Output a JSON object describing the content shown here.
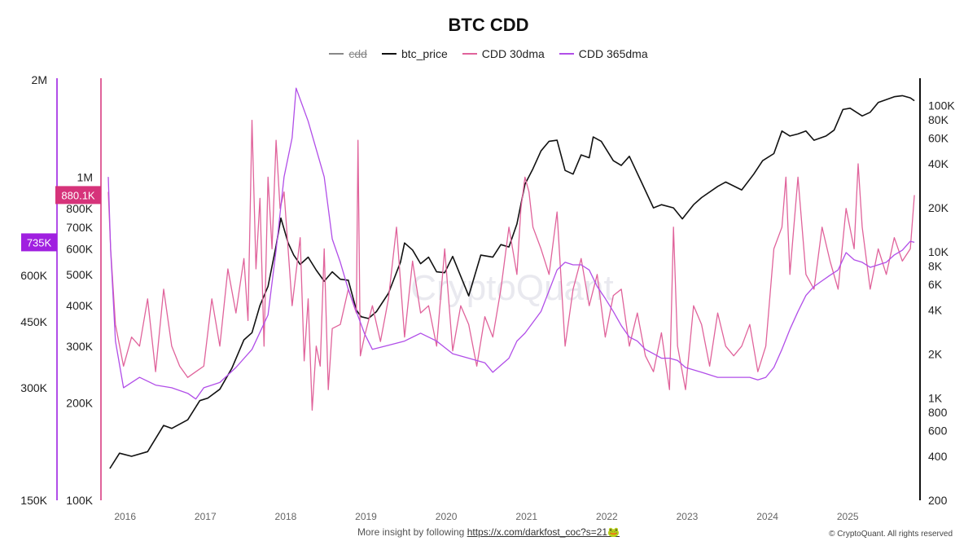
{
  "header": {
    "title": "BTC CDD"
  },
  "legend": {
    "items": [
      {
        "label": "cdd",
        "color": "#888888",
        "hidden": true
      },
      {
        "label": "btc_price",
        "color": "#111111"
      },
      {
        "label": "CDD 30dma",
        "color": "#e0639b"
      },
      {
        "label": "CDD 365dma",
        "color": "#b14ee8"
      }
    ]
  },
  "footer": {
    "insight_text": "More insight by following",
    "insight_link": "https://x.com/darkfost_coc?s=21🐸",
    "copyright": "© CryptoQuant. All rights reserved"
  },
  "watermark": "CryptoQuant",
  "chart_data": {
    "type": "line",
    "title": "BTC CDD",
    "x_ticks": [
      "2016",
      "2017",
      "2018",
      "2019",
      "2020",
      "2021",
      "2022",
      "2023",
      "2024",
      "2025"
    ],
    "x_range": [
      2015.78,
      2025.9
    ],
    "axes": {
      "left_outer": {
        "scale": "log",
        "range": [
          150000,
          2000000
        ],
        "ticks": [
          "2M",
          "750K",
          "600K",
          "450K",
          "300K",
          "150K"
        ],
        "tick_values": [
          2000000,
          750000,
          600000,
          450000,
          300000,
          150000
        ],
        "color": "#b14ee8"
      },
      "left_inner": {
        "scale": "log",
        "range": [
          100000,
          2000000
        ],
        "ticks": [
          "1M",
          "800K",
          "700K",
          "600K",
          "500K",
          "400K",
          "300K",
          "200K",
          "100K"
        ],
        "tick_values": [
          1000000,
          800000,
          700000,
          600000,
          500000,
          400000,
          300000,
          200000,
          100000
        ],
        "color": "#e0639b"
      },
      "right": {
        "scale": "log",
        "range": [
          200,
          150000
        ],
        "ticks": [
          "100K",
          "80K",
          "60K",
          "40K",
          "20K",
          "10K",
          "8K",
          "6K",
          "4K",
          "2K",
          "1K",
          "800",
          "600",
          "400",
          "200"
        ],
        "tick_values": [
          100000,
          80000,
          60000,
          40000,
          20000,
          10000,
          8000,
          6000,
          4000,
          2000,
          1000,
          800,
          600,
          400,
          200
        ],
        "color": "#111111"
      }
    },
    "current_flags": [
      {
        "label": "735K",
        "value": 735000,
        "axis": "left_outer",
        "color": "#a020e0"
      },
      {
        "label": "880.1K",
        "value": 880100,
        "axis": "left_inner",
        "color": "#d6337a"
      }
    ],
    "series": [
      {
        "name": "btc_price",
        "axis": "right",
        "color": "#111111",
        "x": [
          2015.83,
          2015.95,
          2016.1,
          2016.3,
          2016.5,
          2016.6,
          2016.8,
          2016.95,
          2017.05,
          2017.2,
          2017.35,
          2017.5,
          2017.6,
          2017.7,
          2017.8,
          2017.9,
          2017.96,
          2018.05,
          2018.12,
          2018.2,
          2018.3,
          2018.4,
          2018.5,
          2018.6,
          2018.7,
          2018.8,
          2018.9,
          2018.96,
          2019.05,
          2019.15,
          2019.3,
          2019.45,
          2019.5,
          2019.6,
          2019.7,
          2019.8,
          2019.9,
          2020.0,
          2020.1,
          2020.2,
          2020.3,
          2020.45,
          2020.6,
          2020.7,
          2020.8,
          2020.9,
          2021.0,
          2021.1,
          2021.2,
          2021.3,
          2021.4,
          2021.5,
          2021.6,
          2021.7,
          2021.8,
          2021.85,
          2021.95,
          2022.1,
          2022.2,
          2022.3,
          2022.45,
          2022.6,
          2022.7,
          2022.85,
          2022.96,
          2023.1,
          2023.2,
          2023.4,
          2023.5,
          2023.7,
          2023.85,
          2023.96,
          2024.1,
          2024.2,
          2024.3,
          2024.4,
          2024.5,
          2024.6,
          2024.75,
          2024.85,
          2024.96,
          2025.05,
          2025.2,
          2025.3,
          2025.4,
          2025.5,
          2025.6,
          2025.7,
          2025.8,
          2025.85
        ],
        "values": [
          330,
          420,
          400,
          430,
          650,
          620,
          710,
          960,
          1000,
          1150,
          1600,
          2500,
          2800,
          4300,
          5800,
          11000,
          17000,
          11500,
          9500,
          8200,
          9200,
          7500,
          6300,
          7300,
          6500,
          6400,
          4000,
          3600,
          3500,
          3900,
          5200,
          8500,
          11500,
          10300,
          8300,
          9200,
          7300,
          7200,
          9300,
          6800,
          5000,
          9500,
          9200,
          11200,
          10800,
          15500,
          29000,
          37000,
          49000,
          57000,
          58000,
          36000,
          34000,
          46000,
          44000,
          61000,
          57000,
          42000,
          39000,
          45000,
          30000,
          20000,
          21000,
          20000,
          16800,
          21000,
          23500,
          28000,
          30000,
          26500,
          34000,
          42000,
          47000,
          67000,
          62000,
          64000,
          67000,
          58000,
          62000,
          68000,
          94000,
          96000,
          85000,
          90000,
          105000,
          110000,
          115000,
          117000,
          113000,
          108000
        ]
      },
      {
        "name": "CDD 30dma",
        "axis": "left_inner",
        "color": "#e0639b",
        "x": [
          2015.81,
          2015.84,
          2015.9,
          2016.0,
          2016.1,
          2016.2,
          2016.3,
          2016.4,
          2016.5,
          2016.6,
          2016.7,
          2016.8,
          2016.9,
          2017.0,
          2017.1,
          2017.2,
          2017.3,
          2017.4,
          2017.5,
          2017.55,
          2017.6,
          2017.65,
          2017.7,
          2017.75,
          2017.8,
          2017.85,
          2017.9,
          2017.95,
          2018.0,
          2018.1,
          2018.2,
          2018.25,
          2018.3,
          2018.35,
          2018.4,
          2018.45,
          2018.5,
          2018.55,
          2018.6,
          2018.7,
          2018.8,
          2018.9,
          2018.92,
          2018.95,
          2019.0,
          2019.1,
          2019.2,
          2019.3,
          2019.4,
          2019.5,
          2019.6,
          2019.7,
          2019.8,
          2019.9,
          2020.0,
          2020.1,
          2020.2,
          2020.3,
          2020.4,
          2020.5,
          2020.6,
          2020.7,
          2020.8,
          2020.9,
          2020.95,
          2021.0,
          2021.05,
          2021.1,
          2021.2,
          2021.3,
          2021.4,
          2021.5,
          2021.6,
          2021.7,
          2021.8,
          2021.9,
          2022.0,
          2022.1,
          2022.2,
          2022.3,
          2022.4,
          2022.5,
          2022.6,
          2022.7,
          2022.8,
          2022.85,
          2022.9,
          2023.0,
          2023.1,
          2023.2,
          2023.3,
          2023.4,
          2023.5,
          2023.6,
          2023.7,
          2023.8,
          2023.9,
          2024.0,
          2024.1,
          2024.2,
          2024.25,
          2024.3,
          2024.4,
          2024.5,
          2024.6,
          2024.7,
          2024.8,
          2024.9,
          2025.0,
          2025.1,
          2025.15,
          2025.2,
          2025.3,
          2025.4,
          2025.5,
          2025.6,
          2025.7,
          2025.8,
          2025.85
        ],
        "values": [
          900000,
          600000,
          350000,
          260000,
          320000,
          300000,
          420000,
          250000,
          450000,
          300000,
          260000,
          240000,
          250000,
          260000,
          420000,
          300000,
          520000,
          380000,
          560000,
          360000,
          1500000,
          520000,
          860000,
          300000,
          1000000,
          600000,
          1300000,
          800000,
          900000,
          400000,
          650000,
          270000,
          420000,
          190000,
          300000,
          260000,
          600000,
          220000,
          340000,
          350000,
          450000,
          380000,
          1300000,
          280000,
          320000,
          400000,
          310000,
          420000,
          700000,
          320000,
          550000,
          380000,
          400000,
          300000,
          600000,
          290000,
          400000,
          350000,
          260000,
          370000,
          320000,
          450000,
          700000,
          500000,
          800000,
          1000000,
          900000,
          700000,
          600000,
          500000,
          780000,
          300000,
          450000,
          560000,
          400000,
          500000,
          320000,
          430000,
          450000,
          300000,
          380000,
          280000,
          250000,
          330000,
          220000,
          700000,
          300000,
          220000,
          400000,
          350000,
          260000,
          380000,
          300000,
          280000,
          300000,
          350000,
          250000,
          300000,
          600000,
          700000,
          1000000,
          500000,
          1000000,
          500000,
          450000,
          700000,
          550000,
          450000,
          800000,
          600000,
          1100000,
          700000,
          450000,
          600000,
          500000,
          650000,
          550000,
          600000,
          880100
        ]
      },
      {
        "name": "CDD 365dma",
        "axis": "left_outer",
        "color": "#b14ee8",
        "x": [
          2015.81,
          2015.84,
          2015.9,
          2016.0,
          2016.2,
          2016.4,
          2016.6,
          2016.8,
          2016.9,
          2017.0,
          2017.2,
          2017.4,
          2017.6,
          2017.8,
          2017.9,
          2018.0,
          2018.1,
          2018.15,
          2018.3,
          2018.5,
          2018.6,
          2018.7,
          2018.8,
          2018.9,
          2019.0,
          2019.1,
          2019.3,
          2019.5,
          2019.7,
          2019.9,
          2020.1,
          2020.3,
          2020.5,
          2020.6,
          2020.8,
          2020.9,
          2021.0,
          2021.2,
          2021.4,
          2021.5,
          2021.6,
          2021.7,
          2021.8,
          2021.9,
          2022.0,
          2022.1,
          2022.2,
          2022.3,
          2022.4,
          2022.5,
          2022.6,
          2022.7,
          2022.8,
          2022.9,
          2023.0,
          2023.2,
          2023.4,
          2023.6,
          2023.8,
          2023.9,
          2024.0,
          2024.1,
          2024.2,
          2024.3,
          2024.4,
          2024.5,
          2024.6,
          2024.7,
          2024.8,
          2024.9,
          2025.0,
          2025.1,
          2025.2,
          2025.3,
          2025.4,
          2025.5,
          2025.6,
          2025.7,
          2025.8,
          2025.85
        ],
        "values": [
          1100000,
          700000,
          400000,
          300000,
          320000,
          305000,
          300000,
          290000,
          280000,
          300000,
          310000,
          340000,
          380000,
          470000,
          700000,
          1100000,
          1400000,
          1900000,
          1550000,
          1100000,
          750000,
          650000,
          550000,
          480000,
          420000,
          380000,
          390000,
          400000,
          420000,
          400000,
          370000,
          360000,
          350000,
          330000,
          360000,
          400000,
          420000,
          480000,
          620000,
          650000,
          640000,
          640000,
          620000,
          560000,
          520000,
          480000,
          440000,
          410000,
          400000,
          380000,
          370000,
          360000,
          360000,
          355000,
          340000,
          330000,
          320000,
          320000,
          320000,
          315000,
          320000,
          340000,
          380000,
          430000,
          480000,
          530000,
          560000,
          580000,
          600000,
          620000,
          690000,
          660000,
          650000,
          630000,
          640000,
          650000,
          680000,
          700000,
          740000,
          735000
        ]
      }
    ]
  }
}
